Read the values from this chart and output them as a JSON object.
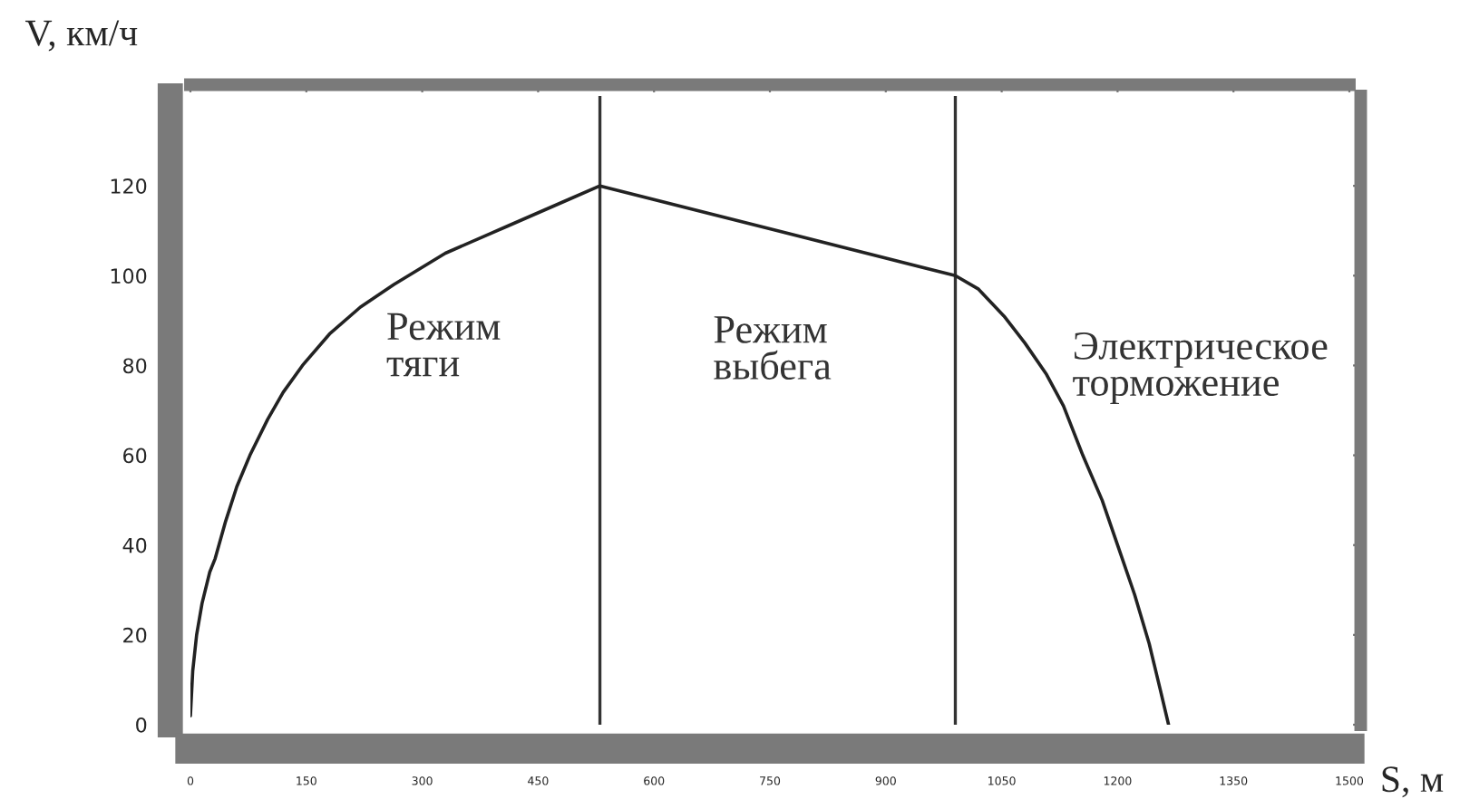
{
  "chart_data": {
    "type": "line",
    "xlabel": "S, м",
    "ylabel": "V, км/ч",
    "series": [
      {
        "color": "#222222",
        "x": [
          0,
          3,
          8,
          15,
          25,
          32,
          45,
          60,
          77,
          100,
          120,
          145,
          180,
          220,
          263,
          330,
          410,
          490,
          530,
          990,
          1020,
          1053,
          1080,
          1108,
          1130,
          1155,
          1180,
          1202,
          1222,
          1241,
          1255,
          1266
        ],
        "values": [
          2,
          12,
          20,
          27,
          34,
          37,
          45,
          53,
          60,
          68,
          74,
          80,
          87,
          93,
          98,
          105,
          111,
          117,
          120,
          100,
          97,
          91,
          85,
          78,
          71,
          60,
          50,
          39,
          29,
          18,
          8,
          0
        ]
      }
    ],
    "ref_lines": [
      {
        "axis": "x",
        "value": 530,
        "color": "#333333"
      },
      {
        "axis": "x",
        "value": 990,
        "color": "#333333"
      }
    ],
    "annotations": [
      "Режим\nтяги",
      "Режим\nвыбега",
      "Электрическое\nторможение"
    ],
    "xlim": [
      0,
      1500
    ],
    "ylim": [
      0,
      140
    ],
    "xticks": [
      0,
      150,
      300,
      450,
      600,
      750,
      900,
      1050,
      1200,
      1350,
      1500
    ],
    "yticks": [
      0,
      20,
      40,
      60,
      80,
      100,
      120
    ]
  }
}
